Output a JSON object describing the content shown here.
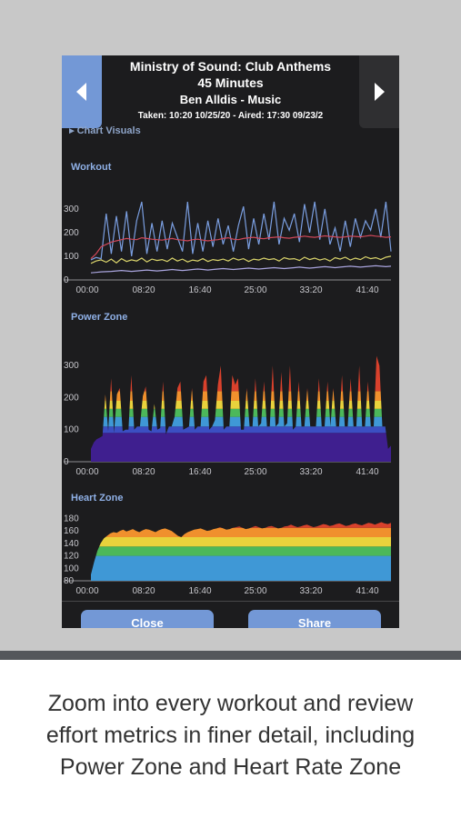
{
  "header": {
    "title": "Ministry of Sound: Club Anthems",
    "duration": "45 Minutes",
    "artist": "Ben Alldis - Music",
    "meta": "Taken: 10:20 10/25/20 - Aired: 17:30 09/23/2",
    "prev_icon": "chevron-left-icon",
    "next_icon": "chevron-right-icon"
  },
  "peek_label": "Chart Visuals",
  "sections": {
    "workout": "Workout",
    "power_zone": "Power Zone",
    "heart_zone": "Heart Zone"
  },
  "buttons": {
    "close": "Close",
    "share": "Share"
  },
  "caption": {
    "line1": "Zoom into every workout and review",
    "line2": "effort metrics in finer detail, including",
    "line3": "Power Zone and Heart Rate Zone"
  },
  "colors": {
    "background": "#c8c8c8",
    "app_bg": "#1c1c1e",
    "accent": "#7398d6",
    "output_line": "#7a9ee0",
    "heart_line": "#d0485a",
    "cadence_line": "#d9d36b",
    "resistance_line": "#a9a4dd",
    "zones": [
      "#3f1f8f",
      "#3b4fc2",
      "#3f98d6",
      "#4cb85a",
      "#e9d23c",
      "#f0902d",
      "#d9412c"
    ]
  },
  "chart_data": [
    {
      "type": "line",
      "title": "Workout",
      "x_ticks": [
        "00:00",
        "08:20",
        "16:40",
        "25:00",
        "33:20",
        "41:40"
      ],
      "y_ticks": [
        "0",
        "100",
        "200",
        "300"
      ],
      "ylim": [
        0,
        380
      ],
      "xlim_minutes": [
        0,
        45
      ],
      "series": [
        {
          "key": "output",
          "values": [
            85,
            95,
            90,
            280,
            110,
            270,
            120,
            290,
            100,
            250,
            330,
            110,
            240,
            120,
            250,
            130,
            240,
            180,
            120,
            330,
            110,
            240,
            120,
            250,
            140,
            260,
            150,
            230,
            120,
            230,
            310,
            130,
            260,
            150,
            280,
            170,
            330,
            150,
            260,
            210,
            280,
            160,
            320,
            200,
            330,
            170,
            300,
            150,
            220,
            120,
            250,
            140,
            260,
            180,
            250,
            210,
            300,
            180,
            330,
            120
          ]
        },
        {
          "key": "heart_rate",
          "values": [
            90,
            110,
            140,
            150,
            160,
            165,
            170,
            175,
            172,
            170,
            178,
            175,
            172,
            170,
            168,
            172,
            175,
            170,
            168,
            165,
            170,
            172,
            168,
            165,
            168,
            170,
            175,
            178,
            172,
            170,
            175,
            178,
            180,
            176,
            174,
            178,
            180,
            182,
            178,
            176,
            180,
            182,
            185,
            182,
            180,
            183,
            186,
            184,
            182,
            180,
            182,
            185,
            184,
            182,
            185,
            188,
            185,
            183,
            180,
            182
          ]
        },
        {
          "key": "cadence",
          "values": [
            70,
            80,
            85,
            75,
            88,
            72,
            90,
            78,
            85,
            80,
            92,
            76,
            88,
            82,
            86,
            78,
            92,
            80,
            88,
            76,
            84,
            80,
            90,
            78,
            86,
            82,
            88,
            80,
            92,
            84,
            90,
            78,
            88,
            84,
            92,
            86,
            90,
            80,
            94,
            88,
            90,
            82,
            96,
            86,
            92,
            84,
            90,
            80,
            94,
            88,
            96,
            84,
            92,
            86,
            98,
            90,
            94,
            86,
            96,
            100
          ]
        },
        {
          "key": "resistance",
          "values": [
            30,
            32,
            34,
            35,
            36,
            38,
            40,
            38,
            36,
            38,
            40,
            42,
            40,
            38,
            40,
            42,
            44,
            42,
            40,
            42,
            44,
            46,
            44,
            42,
            44,
            46,
            48,
            46,
            44,
            46,
            48,
            50,
            48,
            46,
            48,
            50,
            52,
            50,
            48,
            50,
            52,
            54,
            52,
            50,
            52,
            54,
            56,
            54,
            52,
            54,
            56,
            58,
            56,
            54,
            56,
            58,
            60,
            58,
            56,
            58
          ]
        }
      ]
    },
    {
      "type": "area",
      "title": "Power Zone",
      "x_ticks": [
        "00:00",
        "08:20",
        "16:40",
        "25:00",
        "33:20",
        "41:40"
      ],
      "y_ticks": [
        "0",
        "100",
        "200",
        "300"
      ],
      "ylim": [
        0,
        380
      ],
      "zone_thresholds": [
        90,
        110,
        140,
        165,
        190,
        220
      ],
      "values": [
        40,
        60,
        70,
        75,
        80,
        210,
        95,
        260,
        90,
        210,
        230,
        95,
        100,
        100,
        270,
        100,
        110,
        110,
        205,
        235,
        100,
        95,
        180,
        100,
        105,
        250,
        85,
        110,
        110,
        140,
        230,
        250,
        100,
        105,
        110,
        230,
        100,
        110,
        110,
        250,
        270,
        100,
        110,
        130,
        240,
        300,
        100,
        110,
        110,
        270,
        240,
        260,
        100,
        100,
        230,
        110,
        110,
        260,
        110,
        120,
        250,
        110,
        110,
        300,
        110,
        120,
        280,
        110,
        120,
        300,
        100,
        110,
        250,
        110,
        110,
        230,
        110,
        110,
        110,
        260,
        110,
        110,
        250,
        110,
        230,
        110,
        110,
        270,
        110,
        110,
        260,
        110,
        110,
        300,
        110,
        110,
        250,
        110,
        110,
        330,
        300,
        110,
        110,
        40,
        50
      ]
    },
    {
      "type": "area",
      "title": "Heart Zone",
      "x_ticks": [
        "00:00",
        "08:20",
        "16:40",
        "25:00",
        "33:20",
        "41:40"
      ],
      "y_ticks": [
        "80",
        "100",
        "120",
        "140",
        "160",
        "180"
      ],
      "ylim": [
        80,
        185
      ],
      "zone_thresholds": [
        120,
        135,
        150,
        165
      ],
      "values": [
        90,
        110,
        128,
        140,
        148,
        152,
        156,
        158,
        157,
        160,
        162,
        159,
        161,
        163,
        160,
        158,
        161,
        163,
        162,
        160,
        158,
        161,
        163,
        164,
        162,
        160,
        156,
        152,
        150,
        155,
        158,
        160,
        162,
        163,
        164,
        162,
        160,
        161,
        163,
        164,
        166,
        164,
        162,
        163,
        165,
        166,
        167,
        165,
        163,
        164,
        166,
        168,
        166,
        164,
        165,
        167,
        168,
        166,
        164,
        165,
        167,
        168,
        170,
        168,
        166,
        167,
        169,
        170,
        168,
        166,
        167,
        169,
        171,
        170,
        168,
        169,
        171,
        172,
        170,
        168,
        169,
        171,
        172,
        170,
        169,
        171,
        173,
        172,
        170,
        172,
        174,
        172,
        171,
        173
      ]
    }
  ]
}
